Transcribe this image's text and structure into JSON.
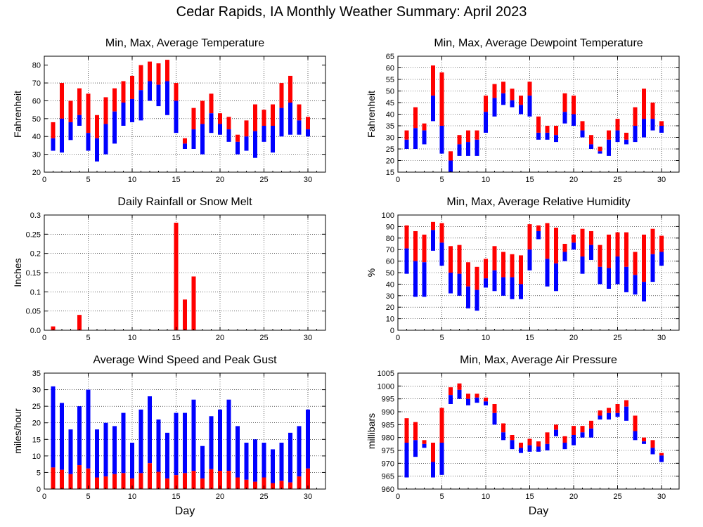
{
  "page": {
    "title": "Cedar Rapids, IA Monthly Weather Summary: April 2023"
  },
  "colors": {
    "max_bar": "#ff0000",
    "min_bar": "#0000ff",
    "grid": "#000000",
    "background": "#ffffff"
  },
  "chart_data": [
    {
      "id": "temp",
      "type": "bar",
      "title": "Min, Max, Average Temperature",
      "ylabel": "Fahrenheit",
      "xlabel": "",
      "xlim": [
        0,
        32
      ],
      "ylim": [
        20,
        85
      ],
      "xticks": [
        0,
        5,
        10,
        15,
        20,
        25,
        30
      ],
      "yticks": [
        20,
        30,
        40,
        50,
        60,
        70,
        80
      ],
      "grid": true,
      "style": "range",
      "day": [
        1,
        2,
        3,
        4,
        5,
        6,
        7,
        8,
        9,
        10,
        11,
        12,
        13,
        14,
        15,
        16,
        17,
        18,
        19,
        20,
        21,
        22,
        23,
        24,
        25,
        26,
        27,
        28,
        29,
        30
      ],
      "max": [
        48,
        70,
        60,
        67,
        64,
        52,
        62,
        67,
        71,
        74,
        80,
        82,
        81,
        83,
        70,
        39,
        56,
        60,
        64,
        53,
        51,
        41,
        49,
        58,
        55,
        58,
        70,
        74,
        58,
        51
      ],
      "avg": [
        39,
        50,
        48,
        52,
        42,
        39,
        47,
        54,
        59,
        61,
        66,
        71,
        69,
        71,
        60,
        36,
        44,
        47,
        53,
        47,
        44,
        37,
        40,
        43,
        46,
        46,
        56,
        59,
        49,
        44
      ],
      "min": [
        32,
        31,
        38,
        46,
        32,
        26,
        30,
        36,
        46,
        48,
        49,
        60,
        57,
        52,
        42,
        33,
        33,
        30,
        42,
        41,
        37,
        30,
        32,
        28,
        37,
        31,
        40,
        41,
        41,
        40
      ]
    },
    {
      "id": "dewpoint",
      "type": "bar",
      "title": "Min, Max, Average Dewpoint Temperature",
      "ylabel": "Fahrenheit",
      "xlabel": "",
      "xlim": [
        0,
        32
      ],
      "ylim": [
        15,
        65
      ],
      "xticks": [
        0,
        5,
        10,
        15,
        20,
        25,
        30
      ],
      "yticks": [
        15,
        20,
        25,
        30,
        35,
        40,
        45,
        50,
        55,
        60,
        65
      ],
      "grid": true,
      "style": "range",
      "day": [
        1,
        2,
        3,
        4,
        5,
        6,
        7,
        8,
        9,
        10,
        11,
        12,
        13,
        14,
        15,
        16,
        17,
        18,
        19,
        20,
        21,
        22,
        23,
        24,
        25,
        26,
        27,
        28,
        29,
        30
      ],
      "max": [
        33,
        43,
        36,
        61,
        58,
        24,
        31,
        33,
        33,
        48,
        53,
        54,
        51,
        48,
        54,
        39,
        35,
        35,
        49,
        48,
        37,
        31,
        26,
        33,
        38,
        32,
        43,
        51,
        45,
        37
      ],
      "avg": [
        29,
        34,
        33,
        48,
        35,
        20,
        27,
        28,
        29,
        41,
        47,
        49,
        46,
        44,
        48,
        32,
        32,
        31,
        41,
        40,
        33,
        27,
        24,
        29,
        33,
        29,
        35,
        38,
        38,
        35
      ],
      "min": [
        25,
        25,
        27,
        37,
        23,
        15,
        22,
        22,
        22,
        32,
        39,
        44,
        43,
        40,
        39,
        29,
        29,
        28,
        36,
        35,
        30,
        25,
        23,
        22,
        28,
        27,
        28,
        30,
        33,
        32
      ]
    },
    {
      "id": "rain",
      "type": "bar",
      "title": "Daily Rainfall or Snow Melt",
      "ylabel": "Inches",
      "xlabel": "",
      "xlim": [
        0,
        32
      ],
      "ylim": [
        0,
        0.3
      ],
      "xticks": [
        0,
        5,
        10,
        15,
        20,
        25,
        30
      ],
      "yticks": [
        0,
        0.05,
        0.1,
        0.15,
        0.2,
        0.25,
        0.3
      ],
      "ytick_labels": [
        "0.0",
        "0.05",
        "0.1",
        "0.15",
        "0.2",
        "0.25",
        "0.3"
      ],
      "grid": true,
      "style": "single",
      "day": [
        1,
        4,
        15,
        16,
        17
      ],
      "values": [
        0.01,
        0.04,
        0.28,
        0.08,
        0.14
      ]
    },
    {
      "id": "rh",
      "type": "bar",
      "title": "Min, Max, Average Relative Humidity",
      "ylabel": "%",
      "xlabel": "",
      "xlim": [
        0,
        32
      ],
      "ylim": [
        0,
        100
      ],
      "xticks": [
        0,
        5,
        10,
        15,
        20,
        25,
        30
      ],
      "yticks": [
        0,
        10,
        20,
        30,
        40,
        50,
        60,
        70,
        80,
        90,
        100
      ],
      "grid": true,
      "style": "range",
      "day": [
        1,
        2,
        3,
        4,
        5,
        6,
        7,
        8,
        9,
        10,
        11,
        12,
        13,
        14,
        15,
        16,
        17,
        18,
        19,
        20,
        21,
        22,
        23,
        24,
        25,
        26,
        27,
        28,
        29,
        30
      ],
      "max": [
        91,
        86,
        83,
        94,
        93,
        73,
        74,
        59,
        55,
        62,
        73,
        68,
        66,
        65,
        92,
        91,
        93,
        89,
        75,
        83,
        88,
        86,
        74,
        83,
        85,
        85,
        68,
        83,
        88,
        82
      ],
      "avg": [
        71,
        60,
        59,
        87,
        76,
        50,
        49,
        38,
        35,
        45,
        52,
        46,
        46,
        40,
        70,
        86,
        62,
        58,
        68,
        76,
        64,
        74,
        55,
        54,
        64,
        55,
        48,
        42,
        66,
        68
      ],
      "min": [
        49,
        29,
        29,
        69,
        56,
        32,
        30,
        19,
        17,
        37,
        34,
        30,
        27,
        27,
        52,
        79,
        38,
        34,
        60,
        70,
        49,
        61,
        40,
        36,
        40,
        33,
        31,
        25,
        42,
        56
      ]
    },
    {
      "id": "wind",
      "type": "bar",
      "title": "Average Wind Speed and Peak Gust",
      "ylabel": "miles/hour",
      "xlabel": "Day",
      "xlim": [
        0,
        32
      ],
      "ylim": [
        0,
        35
      ],
      "xticks": [
        0,
        5,
        10,
        15,
        20,
        25,
        30
      ],
      "yticks": [
        0,
        5,
        10,
        15,
        20,
        25,
        30,
        35
      ],
      "grid": true,
      "style": "stack",
      "day": [
        1,
        2,
        3,
        4,
        5,
        6,
        7,
        8,
        9,
        10,
        11,
        12,
        13,
        14,
        15,
        16,
        17,
        18,
        19,
        20,
        21,
        22,
        23,
        24,
        25,
        26,
        27,
        28,
        29,
        30
      ],
      "avg_speed": [
        6.5,
        5.8,
        4.5,
        7.2,
        6.2,
        3.5,
        3.8,
        4.5,
        4.8,
        3.2,
        4.8,
        7.8,
        5.2,
        3.2,
        4.2,
        4.8,
        5.5,
        3.2,
        6.0,
        5.5,
        5.5,
        3.5,
        2.8,
        2.2,
        3.5,
        1.8,
        2.5,
        2.0,
        3.8,
        6.2
      ],
      "peak_gust": [
        31,
        26,
        18,
        25,
        30,
        18,
        20,
        19,
        23,
        14,
        24,
        28,
        21,
        17,
        23,
        23,
        27,
        13,
        22,
        24,
        27,
        19,
        14,
        15,
        14,
        12,
        14,
        17,
        19,
        24
      ]
    },
    {
      "id": "pressure",
      "type": "bar",
      "title": "Min, Max, Average Air Pressure",
      "ylabel": "millibars",
      "xlabel": "Day",
      "xlim": [
        0,
        32
      ],
      "ylim": [
        960,
        1005
      ],
      "xticks": [
        0,
        5,
        10,
        15,
        20,
        25,
        30
      ],
      "yticks": [
        960,
        965,
        970,
        975,
        980,
        985,
        990,
        995,
        1000,
        1005
      ],
      "grid": true,
      "style": "range",
      "day": [
        1,
        2,
        3,
        4,
        5,
        6,
        7,
        8,
        9,
        10,
        11,
        12,
        13,
        14,
        15,
        16,
        17,
        18,
        19,
        20,
        21,
        22,
        23,
        24,
        25,
        26,
        27,
        28,
        29,
        30
      ],
      "max": [
        987.5,
        986.0,
        979.0,
        978.0,
        991.5,
        999.5,
        1001.0,
        997.0,
        997.0,
        995.5,
        993.0,
        985.5,
        981.0,
        978.0,
        979.5,
        978.5,
        982.0,
        985.0,
        980.5,
        984.5,
        984.5,
        986.5,
        990.5,
        991.5,
        993.0,
        994.5,
        988.5,
        980.0,
        979.0,
        974.0
      ],
      "avg": [
        978.0,
        979.0,
        977.5,
        970.5,
        978.0,
        996.5,
        998.5,
        995.0,
        995.5,
        994.0,
        989.5,
        982.0,
        979.0,
        976.0,
        977.0,
        976.5,
        977.5,
        983.0,
        978.0,
        981.0,
        982.0,
        983.5,
        988.5,
        989.5,
        989.5,
        992.0,
        982.5,
        978.5,
        976.0,
        973.0
      ],
      "min": [
        964.5,
        972.5,
        976.0,
        964.5,
        965.5,
        993.0,
        995.0,
        992.5,
        993.5,
        992.5,
        985.0,
        979.0,
        975.5,
        974.0,
        974.5,
        974.5,
        975.0,
        980.5,
        975.5,
        977.0,
        980.0,
        980.0,
        987.0,
        987.0,
        988.0,
        986.5,
        979.0,
        977.5,
        973.5,
        970.5
      ]
    }
  ]
}
